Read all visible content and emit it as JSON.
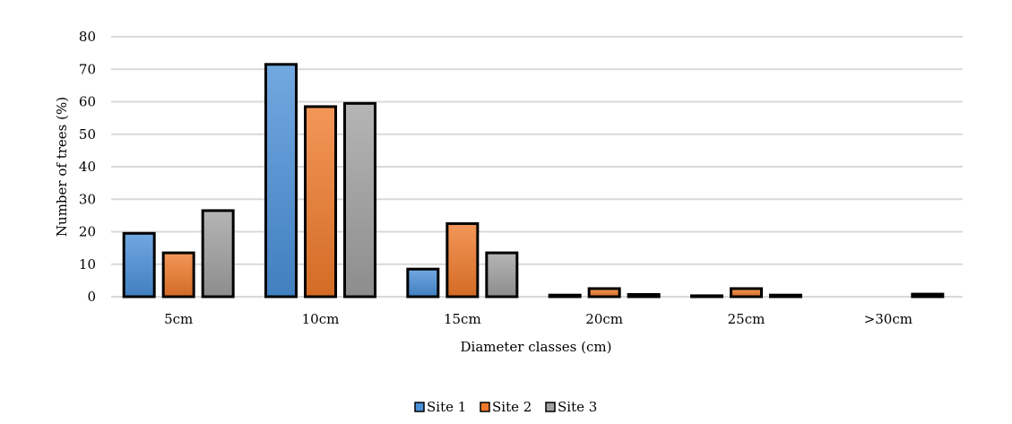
{
  "chart_data": {
    "type": "bar",
    "title": "",
    "xlabel": "Diameter classes (cm)",
    "ylabel": "Number of trees (%)",
    "ylim": [
      0,
      80
    ],
    "yticks": [
      0,
      10,
      20,
      30,
      40,
      50,
      60,
      70,
      80
    ],
    "grid": true,
    "legend_position": "bottom",
    "categories": [
      "5cm",
      "10cm",
      "15cm",
      "20cm",
      "25cm",
      ">30cm"
    ],
    "series": [
      {
        "name": "Site 1",
        "color": "#4a90d9",
        "values": [
          19.5,
          71.5,
          8.5,
          0.5,
          0.3,
          0
        ]
      },
      {
        "name": "Site 2",
        "color": "#f07a2a",
        "values": [
          13.5,
          58.5,
          22.5,
          2.5,
          2.5,
          0
        ]
      },
      {
        "name": "Site 3",
        "color": "#a0a0a0",
        "values": [
          26.5,
          59.5,
          13.5,
          0.7,
          0.5,
          0.8
        ]
      }
    ]
  }
}
